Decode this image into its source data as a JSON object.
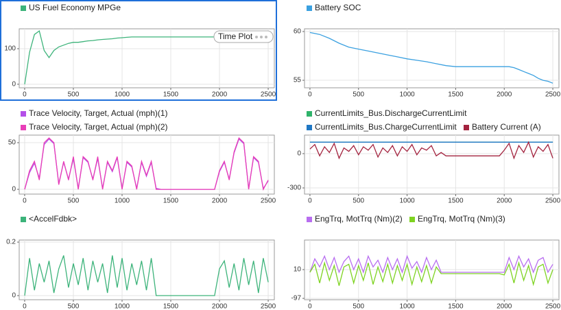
{
  "badge": "Time Plot",
  "chart_data": [
    {
      "type": "line",
      "xlim": [
        -56,
        2563
      ],
      "ylim": [
        -10,
        156
      ],
      "xticks": [
        0,
        500,
        1000,
        1500,
        2000,
        2500
      ],
      "yticks": [
        0,
        100
      ],
      "grid": true,
      "x": [
        0,
        50,
        100,
        150,
        200,
        250,
        300,
        350,
        400,
        450,
        500,
        550,
        600,
        650,
        700,
        750,
        800,
        850,
        900,
        950,
        1000,
        1050,
        1100,
        1150,
        1200,
        1250,
        1300,
        1350,
        1400,
        1450,
        1500,
        1550,
        1600,
        1650,
        1700,
        1750,
        1800,
        1850,
        1900,
        1950,
        2000,
        2050,
        2100,
        2150,
        2200,
        2250,
        2300,
        2350,
        2400,
        2450,
        2500
      ],
      "series": [
        {
          "name": "US Fuel Economy MPGe",
          "color": "#3cb37a",
          "values": [
            0,
            90,
            140,
            150,
            95,
            75,
            95,
            105,
            110,
            115,
            118,
            118,
            120,
            122,
            123,
            125,
            126,
            127,
            128,
            130,
            131,
            132,
            133,
            133,
            133,
            133,
            133,
            133,
            133,
            133,
            133,
            133,
            133,
            133,
            133,
            133,
            133,
            133,
            133,
            133,
            133,
            133,
            133,
            133,
            133,
            133,
            133,
            133,
            133,
            133,
            133
          ]
        }
      ]
    },
    {
      "type": "line",
      "xlim": [
        -56,
        2563
      ],
      "ylim": [
        54.23,
        60.28
      ],
      "xticks": [
        0,
        500,
        1000,
        1500,
        2000,
        2500
      ],
      "yticks": [
        55,
        60
      ],
      "grid": true,
      "x": [
        0,
        100,
        200,
        300,
        400,
        500,
        600,
        700,
        800,
        900,
        1000,
        1100,
        1200,
        1300,
        1400,
        1500,
        1600,
        1700,
        1800,
        1900,
        2000,
        2050,
        2100,
        2150,
        2200,
        2250,
        2300,
        2350,
        2400,
        2450,
        2500
      ],
      "series": [
        {
          "name": "Battery SOC",
          "color": "#3aa0e0",
          "values": [
            59.9,
            59.7,
            59.3,
            58.8,
            58.4,
            58.2,
            58.0,
            57.8,
            57.6,
            57.4,
            57.2,
            57.05,
            56.9,
            56.7,
            56.5,
            56.4,
            56.4,
            56.4,
            56.4,
            56.4,
            56.4,
            56.4,
            56.3,
            56.1,
            55.9,
            55.7,
            55.5,
            55.2,
            55.0,
            54.9,
            54.7
          ]
        }
      ]
    },
    {
      "type": "line",
      "xlim": [
        -56,
        2563
      ],
      "ylim": [
        -5.1,
        58.1
      ],
      "xticks": [
        0,
        500,
        1000,
        1500,
        2000,
        2500
      ],
      "yticks": [
        0,
        50
      ],
      "grid": true,
      "x": [
        0,
        50,
        100,
        150,
        200,
        250,
        300,
        350,
        400,
        450,
        500,
        550,
        600,
        650,
        700,
        750,
        800,
        850,
        900,
        950,
        1000,
        1050,
        1100,
        1150,
        1200,
        1250,
        1300,
        1350,
        1400,
        1450,
        1500,
        1550,
        1600,
        1650,
        1700,
        1750,
        1800,
        1850,
        1900,
        1950,
        2000,
        2050,
        2100,
        2150,
        2200,
        2250,
        2300,
        2350,
        2400,
        2450,
        2500
      ],
      "series": [
        {
          "name": "Trace Velocity, Target, Actual (mph)(1)",
          "color": "#b44fe8",
          "values": [
            0,
            18,
            28,
            12,
            48,
            54,
            49,
            6,
            29,
            11,
            33,
            1,
            34,
            29,
            11,
            33,
            1,
            29,
            19,
            34,
            1,
            29,
            24,
            1,
            29,
            14,
            29,
            1,
            0,
            0,
            0,
            0,
            0,
            0,
            0,
            0,
            0,
            0,
            0,
            0,
            19,
            29,
            11,
            39,
            54,
            49,
            1,
            34,
            29,
            1,
            9
          ]
        },
        {
          "name": "Trace Velocity, Target, Actual (mph)(2)",
          "color": "#e83fb8",
          "values": [
            0,
            20,
            30,
            10,
            50,
            55,
            50,
            5,
            30,
            10,
            35,
            0,
            35,
            30,
            10,
            35,
            0,
            30,
            20,
            35,
            0,
            30,
            25,
            0,
            30,
            15,
            30,
            0,
            0,
            0,
            0,
            0,
            0,
            0,
            0,
            0,
            0,
            0,
            0,
            0,
            20,
            30,
            10,
            40,
            55,
            50,
            0,
            35,
            30,
            0,
            10
          ]
        }
      ]
    },
    {
      "type": "line",
      "xlim": [
        -56,
        2563
      ],
      "ylim": [
        -354,
        162
      ],
      "xticks": [
        0,
        500,
        1000,
        1500,
        2000,
        2500
      ],
      "yticks": [
        -300,
        0
      ],
      "grid": true,
      "x": [
        0,
        50,
        100,
        150,
        200,
        250,
        300,
        350,
        400,
        450,
        500,
        550,
        600,
        650,
        700,
        750,
        800,
        850,
        900,
        950,
        1000,
        1050,
        1100,
        1150,
        1200,
        1250,
        1300,
        1350,
        1400,
        1450,
        1500,
        1550,
        1600,
        1650,
        1700,
        1750,
        1800,
        1850,
        1900,
        1950,
        2000,
        2050,
        2100,
        2150,
        2200,
        2250,
        2300,
        2350,
        2400,
        2450,
        2500
      ],
      "series": [
        {
          "name": "CurrentLimits_Bus.DischargeCurrentLimit",
          "color": "#2fb36a",
          "values": [
            100,
            100,
            100,
            100,
            100,
            100,
            100,
            100,
            100,
            100,
            100,
            100,
            100,
            100,
            100,
            100,
            100,
            100,
            100,
            100,
            100,
            100,
            100,
            100,
            100,
            100,
            100,
            100,
            100,
            100,
            100,
            100,
            100,
            100,
            100,
            100,
            100,
            100,
            100,
            100,
            100,
            100,
            100,
            100,
            100,
            100,
            100,
            100,
            100,
            100,
            100
          ]
        },
        {
          "name": "CurrentLimits_Bus.ChargeCurrentLimit",
          "color": "#1f77c4",
          "values": [
            100,
            100,
            100,
            100,
            100,
            100,
            100,
            100,
            100,
            100,
            100,
            100,
            100,
            100,
            100,
            100,
            100,
            100,
            100,
            100,
            100,
            100,
            100,
            100,
            100,
            100,
            100,
            100,
            100,
            100,
            100,
            100,
            100,
            100,
            100,
            100,
            100,
            100,
            100,
            100,
            100,
            100,
            100,
            100,
            100,
            100,
            100,
            100,
            100,
            100,
            100
          ]
        },
        {
          "name": "Battery Current (A)",
          "color": "#a3223e",
          "values": [
            40,
            80,
            -20,
            60,
            10,
            90,
            -40,
            50,
            20,
            70,
            -10,
            60,
            30,
            80,
            -30,
            50,
            10,
            70,
            -20,
            60,
            20,
            80,
            -10,
            50,
            30,
            70,
            -20,
            10,
            -20,
            -20,
            -20,
            -20,
            -20,
            -20,
            -20,
            -20,
            -20,
            -20,
            -20,
            -20,
            30,
            90,
            -40,
            70,
            10,
            100,
            -30,
            60,
            20,
            80,
            -40
          ]
        }
      ]
    },
    {
      "type": "line",
      "xlim": [
        -56,
        2563
      ],
      "ylim": [
        -0.0154,
        0.2077
      ],
      "xticks": [
        0,
        500,
        1000,
        1500,
        2000,
        2500
      ],
      "yticks": [
        0,
        0.2
      ],
      "grid": true,
      "x": [
        0,
        50,
        100,
        150,
        200,
        250,
        300,
        350,
        400,
        450,
        500,
        550,
        600,
        650,
        700,
        750,
        800,
        850,
        900,
        950,
        1000,
        1050,
        1100,
        1150,
        1200,
        1250,
        1300,
        1350,
        1400,
        1450,
        1500,
        1550,
        1600,
        1650,
        1700,
        1750,
        1800,
        1850,
        1900,
        1950,
        2000,
        2050,
        2100,
        2150,
        2200,
        2250,
        2300,
        2350,
        2400,
        2450,
        2500
      ],
      "series": [
        {
          "name": "<AccelFdbk>",
          "color": "#3cb37a",
          "values": [
            0,
            0.14,
            0.02,
            0.12,
            0.05,
            0.13,
            0.01,
            0.1,
            0.15,
            0.03,
            0.12,
            0.04,
            0.14,
            0.02,
            0.13,
            0.05,
            0.12,
            0.01,
            0.15,
            0.03,
            0.14,
            0.02,
            0.12,
            0.04,
            0.13,
            0.02,
            0.14,
            0,
            0,
            0,
            0,
            0,
            0,
            0,
            0,
            0,
            0,
            0,
            0,
            0,
            0.1,
            0.13,
            0.03,
            0.12,
            0.02,
            0.14,
            0.04,
            0.13,
            0.01,
            0.14,
            0.05
          ]
        }
      ]
    },
    {
      "type": "line",
      "xlim": [
        -56,
        2563
      ],
      "ylim": [
        -102,
        120
      ],
      "xticks": [
        0,
        500,
        1000,
        1500,
        2000,
        2500
      ],
      "yticks": [
        -97,
        10
      ],
      "grid": true,
      "x": [
        0,
        50,
        100,
        150,
        200,
        250,
        300,
        350,
        400,
        450,
        500,
        550,
        600,
        650,
        700,
        750,
        800,
        850,
        900,
        950,
        1000,
        1050,
        1100,
        1150,
        1200,
        1250,
        1300,
        1350,
        1400,
        1450,
        1500,
        1550,
        1600,
        1650,
        1700,
        1750,
        1800,
        1850,
        1900,
        1950,
        2000,
        2050,
        2100,
        2150,
        2200,
        2250,
        2300,
        2350,
        2400,
        2450,
        2500
      ],
      "series": [
        {
          "name": "EngTrq, MotTrq (Nm)(2)",
          "color": "#b86ef0",
          "values": [
            0,
            50,
            20,
            60,
            10,
            55,
            0,
            40,
            60,
            10,
            50,
            0,
            60,
            20,
            45,
            0,
            55,
            10,
            50,
            0,
            60,
            15,
            40,
            0,
            55,
            10,
            45,
            0,
            0,
            0,
            0,
            0,
            0,
            0,
            0,
            0,
            0,
            0,
            0,
            0,
            0,
            55,
            10,
            60,
            20,
            50,
            0,
            45,
            55,
            0,
            30
          ]
        },
        {
          "name": "EngTrq, MotTrq (Nm)(3)",
          "color": "#7ed321",
          "values": [
            0,
            30,
            -40,
            35,
            -30,
            25,
            -50,
            20,
            30,
            -40,
            25,
            -30,
            35,
            -45,
            20,
            -35,
            30,
            -40,
            25,
            -30,
            30,
            -45,
            20,
            -35,
            25,
            -40,
            20,
            -5,
            -5,
            -5,
            -5,
            -5,
            -5,
            -5,
            -5,
            -5,
            -5,
            -5,
            -5,
            -5,
            -10,
            30,
            -40,
            35,
            -30,
            25,
            -45,
            20,
            30,
            -40,
            10
          ]
        }
      ]
    }
  ]
}
